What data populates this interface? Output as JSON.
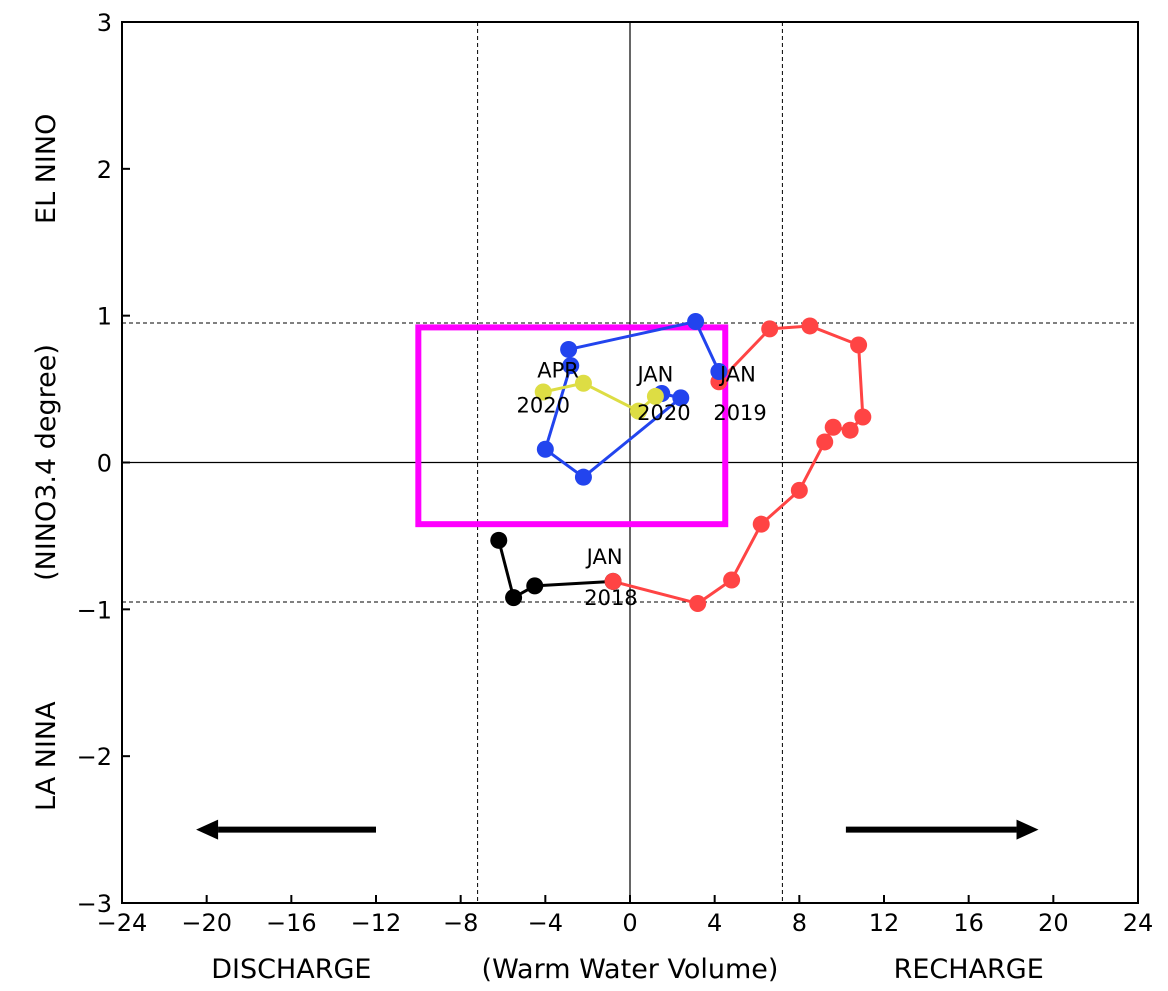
{
  "chart_data": {
    "type": "line",
    "title": "",
    "xlabel": "(Warm Water Volume)",
    "ylabel": "(NINO3.4 degree)",
    "xlim": [
      -24,
      24
    ],
    "ylim": [
      -3,
      3
    ],
    "x_ticks": [
      -24,
      -20,
      -16,
      -12,
      -8,
      -4,
      0,
      4,
      8,
      12,
      16,
      20,
      24
    ],
    "y_ticks": [
      -3,
      -2,
      -1,
      0,
      1,
      2,
      3
    ],
    "x_tick_labels": [
      "−24",
      "−20",
      "−16",
      "−12",
      "−8",
      "−4",
      "0",
      "4",
      "8",
      "12",
      "16",
      "20",
      "24"
    ],
    "y_tick_labels": [
      "−3",
      "−2",
      "−1",
      "0",
      "1",
      "2",
      "3"
    ],
    "x_left_label": "DISCHARGE",
    "x_right_label": "RECHARGE",
    "y_top_label": "EL NINO",
    "y_bottom_label": "LA NINA",
    "reference_lines": {
      "x_dashed": [
        -7.2,
        7.2
      ],
      "y_dashed": [
        -0.95,
        0.95
      ],
      "x_solid": [
        0
      ],
      "y_solid": [
        0
      ]
    },
    "highlight_box": {
      "x": [
        -10,
        4.5
      ],
      "y": [
        -0.42,
        0.92
      ],
      "color": "#ff00ff"
    },
    "arrows": [
      {
        "direction": "left",
        "x_from": -12,
        "x_to": -20.5,
        "y": -2.5
      },
      {
        "direction": "right",
        "x_from": 10.2,
        "x_to": 19.3,
        "y": -2.5
      }
    ],
    "series": [
      {
        "color": "#000000",
        "points": [
          [
            -6.2,
            -0.53
          ],
          [
            -5.5,
            -0.92
          ],
          [
            -4.5,
            -0.84
          ],
          [
            -0.8,
            -0.81
          ]
        ]
      },
      {
        "color": "#ff4444",
        "points": [
          [
            -0.8,
            -0.81
          ],
          [
            3.2,
            -0.96
          ],
          [
            4.8,
            -0.8
          ],
          [
            6.2,
            -0.42
          ],
          [
            8.0,
            -0.19
          ],
          [
            9.2,
            0.14
          ],
          [
            9.6,
            0.24
          ],
          [
            10.4,
            0.22
          ],
          [
            11.0,
            0.31
          ],
          [
            10.8,
            0.8
          ],
          [
            8.5,
            0.93
          ],
          [
            6.6,
            0.91
          ],
          [
            4.2,
            0.55
          ]
        ]
      },
      {
        "color": "#2244ee",
        "points": [
          [
            4.2,
            0.62
          ],
          [
            3.1,
            0.96
          ],
          [
            -2.9,
            0.77
          ],
          [
            -2.8,
            0.66
          ],
          [
            -4.0,
            0.09
          ],
          [
            -2.2,
            -0.1
          ],
          [
            2.4,
            0.44
          ],
          [
            1.5,
            0.47
          ]
        ]
      },
      {
        "color": "#dddd44",
        "points": [
          [
            1.2,
            0.45
          ],
          [
            0.4,
            0.35
          ],
          [
            -2.2,
            0.54
          ],
          [
            -4.1,
            0.48
          ]
        ]
      }
    ],
    "annotations": [
      {
        "text": "APR",
        "x": -3.4,
        "y": 0.58
      },
      {
        "text": "2020",
        "x": -4.1,
        "y": 0.34
      },
      {
        "text": "JAN",
        "x": 1.2,
        "y": 0.55
      },
      {
        "text": "2020",
        "x": 1.6,
        "y": 0.29
      },
      {
        "text": "JAN",
        "x": 5.1,
        "y": 0.55
      },
      {
        "text": "2019",
        "x": 5.2,
        "y": 0.29
      },
      {
        "text": "JAN",
        "x": -1.2,
        "y": -0.69
      },
      {
        "text": "2018",
        "x": -0.9,
        "y": -0.97
      }
    ]
  }
}
